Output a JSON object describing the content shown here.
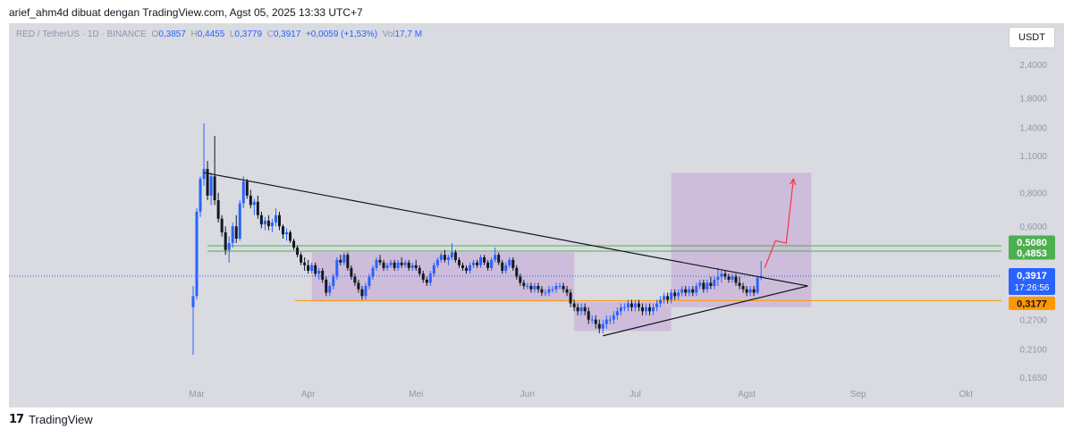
{
  "header": {
    "attribution": "arief_ahm4d dibuat dengan TradingView.com, Agst 05, 2025 13:33 UTC+7"
  },
  "legend": {
    "symbol": "RED / TetherUS · 1D · BINANCE",
    "open_label": "O",
    "open": "0,3857",
    "high_label": "H",
    "high": "0,4455",
    "low_label": "L",
    "low": "0,3779",
    "close_label": "C",
    "close": "0,3917",
    "change": "+0,0059 (+1,53%)",
    "vol_label": "Vol",
    "vol": "17,7 M"
  },
  "currency_button": "USDT",
  "footer": {
    "logo": "17",
    "brand": "TradingView"
  },
  "colors": {
    "up": "#2962ff",
    "down": "#131722",
    "box": "#c7a8d6",
    "green_line": "#4caf50",
    "orange_line": "#ff9800",
    "arrow": "#f23645"
  },
  "chart_data": {
    "type": "candlestick",
    "y_scale": "log",
    "y_ticks": [
      "2,4000",
      "1,8000",
      "1,4000",
      "1,1000",
      "0,8000",
      "0,6000",
      "0,2700",
      "0,2100",
      "0,1650"
    ],
    "x_ticks": [
      "Mar",
      "Apr",
      "Mei",
      "Jun",
      "Jul",
      "Agst",
      "Sep",
      "Okt"
    ],
    "price_labels": [
      {
        "text": "0,5080",
        "value": 0.508,
        "color": "#4caf50"
      },
      {
        "text": "0,4853",
        "value": 0.4853,
        "color": "#4caf50"
      },
      {
        "text": "0,3917",
        "value": 0.3917,
        "color": "#2962ff"
      },
      {
        "text": "17:26:56",
        "value": 0.3917,
        "color": "#2962ff"
      },
      {
        "text": "0,3177",
        "value": 0.3177,
        "color": "#ff9800"
      }
    ],
    "last_price": 0.3917,
    "countdown": "17:26:56",
    "levels": [
      {
        "name": "resistance-upper",
        "value": 0.508,
        "color": "#4caf50"
      },
      {
        "name": "resistance-lower",
        "value": 0.4853,
        "color": "#4caf50"
      },
      {
        "name": "support",
        "value": 0.3177,
        "color": "#ff9800"
      }
    ],
    "annotations": [
      {
        "type": "trendline",
        "from": [
          "2025-03-03",
          0.95
        ],
        "to": [
          "2025-08-18",
          0.36
        ]
      },
      {
        "type": "trendline",
        "from": [
          "2025-06-22",
          0.235
        ],
        "to": [
          "2025-08-18",
          0.36
        ]
      },
      {
        "type": "box",
        "x0": "2025-04-02",
        "x1": "2025-06-14",
        "y0": 0.315,
        "y1": 0.48
      },
      {
        "type": "box",
        "x0": "2025-06-14",
        "x1": "2025-07-11",
        "y0": 0.245,
        "y1": 0.315
      },
      {
        "type": "box",
        "x0": "2025-07-11",
        "x1": "2025-08-19",
        "y0": 0.3,
        "y1": 0.95
      },
      {
        "type": "projection-arrow",
        "points": [
          [
            "2025-08-06",
            0.42
          ],
          [
            "2025-08-09",
            0.53
          ],
          [
            "2025-08-12",
            0.52
          ],
          [
            "2025-08-14",
            0.9
          ]
        ]
      }
    ],
    "ohlc": [
      [
        "2025-02-28",
        0.3,
        0.36,
        0.2,
        0.33
      ],
      [
        "2025-03-01",
        0.33,
        0.7,
        0.32,
        0.68
      ],
      [
        "2025-03-02",
        0.68,
        0.92,
        0.65,
        0.9
      ],
      [
        "2025-03-03",
        0.9,
        1.45,
        0.85,
        0.98
      ],
      [
        "2025-03-04",
        0.98,
        1.05,
        0.75,
        0.78
      ],
      [
        "2025-03-05",
        0.78,
        0.95,
        0.72,
        0.92
      ],
      [
        "2025-03-06",
        0.92,
        1.3,
        0.72,
        0.75
      ],
      [
        "2025-03-07",
        0.75,
        0.8,
        0.62,
        0.64
      ],
      [
        "2025-03-08",
        0.64,
        0.66,
        0.55,
        0.57
      ],
      [
        "2025-03-09",
        0.57,
        0.6,
        0.47,
        0.49
      ],
      [
        "2025-03-10",
        0.49,
        0.55,
        0.44,
        0.52
      ],
      [
        "2025-03-11",
        0.52,
        0.62,
        0.5,
        0.6
      ],
      [
        "2025-03-12",
        0.6,
        0.66,
        0.52,
        0.54
      ],
      [
        "2025-03-13",
        0.54,
        0.75,
        0.53,
        0.73
      ],
      [
        "2025-03-14",
        0.73,
        0.92,
        0.7,
        0.88
      ],
      [
        "2025-03-15",
        0.88,
        0.9,
        0.76,
        0.78
      ],
      [
        "2025-03-16",
        0.78,
        0.82,
        0.7,
        0.72
      ],
      [
        "2025-03-17",
        0.72,
        0.76,
        0.66,
        0.74
      ],
      [
        "2025-03-18",
        0.74,
        0.78,
        0.64,
        0.66
      ],
      [
        "2025-03-19",
        0.66,
        0.68,
        0.59,
        0.61
      ],
      [
        "2025-03-20",
        0.61,
        0.65,
        0.58,
        0.63
      ],
      [
        "2025-03-21",
        0.63,
        0.66,
        0.58,
        0.6
      ],
      [
        "2025-03-22",
        0.6,
        0.64,
        0.57,
        0.62
      ],
      [
        "2025-03-23",
        0.62,
        0.7,
        0.6,
        0.66
      ],
      [
        "2025-03-24",
        0.66,
        0.68,
        0.58,
        0.6
      ],
      [
        "2025-03-25",
        0.6,
        0.61,
        0.54,
        0.56
      ],
      [
        "2025-03-26",
        0.56,
        0.59,
        0.53,
        0.57
      ],
      [
        "2025-03-27",
        0.57,
        0.58,
        0.52,
        0.53
      ],
      [
        "2025-03-28",
        0.53,
        0.54,
        0.49,
        0.5
      ],
      [
        "2025-03-29",
        0.5,
        0.51,
        0.46,
        0.47
      ],
      [
        "2025-03-30",
        0.47,
        0.48,
        0.43,
        0.44
      ],
      [
        "2025-03-31",
        0.44,
        0.46,
        0.41,
        0.43
      ],
      [
        "2025-04-01",
        0.43,
        0.45,
        0.4,
        0.41
      ],
      [
        "2025-04-02",
        0.41,
        0.44,
        0.4,
        0.43
      ],
      [
        "2025-04-03",
        0.43,
        0.44,
        0.39,
        0.4
      ],
      [
        "2025-04-04",
        0.4,
        0.42,
        0.38,
        0.41
      ],
      [
        "2025-04-05",
        0.41,
        0.42,
        0.37,
        0.38
      ],
      [
        "2025-04-06",
        0.38,
        0.39,
        0.33,
        0.34
      ],
      [
        "2025-04-07",
        0.34,
        0.37,
        0.33,
        0.36
      ],
      [
        "2025-04-08",
        0.36,
        0.4,
        0.35,
        0.39
      ],
      [
        "2025-04-09",
        0.39,
        0.46,
        0.38,
        0.45
      ],
      [
        "2025-04-10",
        0.45,
        0.47,
        0.43,
        0.44
      ],
      [
        "2025-04-11",
        0.44,
        0.48,
        0.43,
        0.47
      ],
      [
        "2025-04-12",
        0.47,
        0.48,
        0.41,
        0.42
      ],
      [
        "2025-04-13",
        0.42,
        0.43,
        0.38,
        0.39
      ],
      [
        "2025-04-14",
        0.39,
        0.4,
        0.36,
        0.37
      ],
      [
        "2025-04-15",
        0.37,
        0.38,
        0.34,
        0.35
      ],
      [
        "2025-04-16",
        0.35,
        0.36,
        0.32,
        0.33
      ],
      [
        "2025-04-17",
        0.33,
        0.37,
        0.32,
        0.36
      ],
      [
        "2025-04-18",
        0.36,
        0.4,
        0.35,
        0.39
      ],
      [
        "2025-04-19",
        0.39,
        0.43,
        0.38,
        0.42
      ],
      [
        "2025-04-20",
        0.42,
        0.46,
        0.41,
        0.45
      ],
      [
        "2025-04-21",
        0.45,
        0.47,
        0.43,
        0.44
      ],
      [
        "2025-04-22",
        0.44,
        0.45,
        0.41,
        0.42
      ],
      [
        "2025-04-23",
        0.42,
        0.44,
        0.41,
        0.43
      ],
      [
        "2025-04-24",
        0.43,
        0.45,
        0.42,
        0.44
      ],
      [
        "2025-04-25",
        0.44,
        0.45,
        0.41,
        0.42
      ],
      [
        "2025-04-26",
        0.42,
        0.45,
        0.41,
        0.44
      ],
      [
        "2025-04-27",
        0.44,
        0.46,
        0.42,
        0.43
      ],
      [
        "2025-04-28",
        0.43,
        0.45,
        0.42,
        0.44
      ],
      [
        "2025-04-29",
        0.44,
        0.45,
        0.41,
        0.42
      ],
      [
        "2025-04-30",
        0.42,
        0.44,
        0.41,
        0.43
      ],
      [
        "2025-05-01",
        0.43,
        0.45,
        0.41,
        0.42
      ],
      [
        "2025-05-02",
        0.42,
        0.43,
        0.39,
        0.4
      ],
      [
        "2025-05-03",
        0.4,
        0.41,
        0.37,
        0.38
      ],
      [
        "2025-05-04",
        0.38,
        0.39,
        0.36,
        0.37
      ],
      [
        "2025-05-05",
        0.37,
        0.41,
        0.36,
        0.4
      ],
      [
        "2025-05-06",
        0.4,
        0.44,
        0.39,
        0.43
      ],
      [
        "2025-05-07",
        0.43,
        0.46,
        0.42,
        0.45
      ],
      [
        "2025-05-08",
        0.45,
        0.48,
        0.44,
        0.47
      ],
      [
        "2025-05-09",
        0.47,
        0.49,
        0.44,
        0.45
      ],
      [
        "2025-05-10",
        0.45,
        0.47,
        0.43,
        0.46
      ],
      [
        "2025-05-11",
        0.46,
        0.52,
        0.45,
        0.48
      ],
      [
        "2025-05-12",
        0.48,
        0.49,
        0.44,
        0.45
      ],
      [
        "2025-05-13",
        0.45,
        0.46,
        0.42,
        0.43
      ],
      [
        "2025-05-14",
        0.43,
        0.44,
        0.41,
        0.42
      ],
      [
        "2025-05-15",
        0.42,
        0.43,
        0.4,
        0.41
      ],
      [
        "2025-05-16",
        0.41,
        0.44,
        0.4,
        0.43
      ],
      [
        "2025-05-17",
        0.43,
        0.45,
        0.42,
        0.44
      ],
      [
        "2025-05-18",
        0.44,
        0.45,
        0.42,
        0.43
      ],
      [
        "2025-05-19",
        0.43,
        0.47,
        0.42,
        0.46
      ],
      [
        "2025-05-20",
        0.46,
        0.47,
        0.43,
        0.44
      ],
      [
        "2025-05-21",
        0.44,
        0.45,
        0.41,
        0.42
      ],
      [
        "2025-05-22",
        0.42,
        0.46,
        0.41,
        0.45
      ],
      [
        "2025-05-23",
        0.45,
        0.5,
        0.44,
        0.47
      ],
      [
        "2025-05-24",
        0.47,
        0.48,
        0.43,
        0.44
      ],
      [
        "2025-05-25",
        0.44,
        0.45,
        0.4,
        0.41
      ],
      [
        "2025-05-26",
        0.41,
        0.44,
        0.4,
        0.43
      ],
      [
        "2025-05-27",
        0.43,
        0.46,
        0.42,
        0.45
      ],
      [
        "2025-05-28",
        0.45,
        0.46,
        0.41,
        0.42
      ],
      [
        "2025-05-29",
        0.42,
        0.43,
        0.38,
        0.39
      ],
      [
        "2025-05-30",
        0.39,
        0.4,
        0.36,
        0.37
      ],
      [
        "2025-05-31",
        0.37,
        0.38,
        0.35,
        0.36
      ],
      [
        "2025-06-01",
        0.36,
        0.37,
        0.35,
        0.36
      ],
      [
        "2025-06-02",
        0.36,
        0.37,
        0.34,
        0.35
      ],
      [
        "2025-06-03",
        0.35,
        0.37,
        0.34,
        0.36
      ],
      [
        "2025-06-04",
        0.36,
        0.37,
        0.34,
        0.35
      ],
      [
        "2025-06-05",
        0.35,
        0.36,
        0.33,
        0.34
      ],
      [
        "2025-06-06",
        0.34,
        0.35,
        0.33,
        0.34
      ],
      [
        "2025-06-07",
        0.34,
        0.36,
        0.33,
        0.35
      ],
      [
        "2025-06-08",
        0.35,
        0.36,
        0.34,
        0.35
      ],
      [
        "2025-06-09",
        0.35,
        0.37,
        0.34,
        0.36
      ],
      [
        "2025-06-10",
        0.36,
        0.37,
        0.35,
        0.36
      ],
      [
        "2025-06-11",
        0.36,
        0.37,
        0.34,
        0.35
      ],
      [
        "2025-06-12",
        0.35,
        0.36,
        0.33,
        0.34
      ],
      [
        "2025-06-13",
        0.34,
        0.35,
        0.3,
        0.31
      ],
      [
        "2025-06-14",
        0.31,
        0.32,
        0.29,
        0.3
      ],
      [
        "2025-06-15",
        0.3,
        0.31,
        0.28,
        0.29
      ],
      [
        "2025-06-16",
        0.29,
        0.31,
        0.28,
        0.3
      ],
      [
        "2025-06-17",
        0.3,
        0.31,
        0.28,
        0.29
      ],
      [
        "2025-06-18",
        0.29,
        0.3,
        0.26,
        0.27
      ],
      [
        "2025-06-19",
        0.27,
        0.28,
        0.26,
        0.27
      ],
      [
        "2025-06-20",
        0.27,
        0.28,
        0.25,
        0.26
      ],
      [
        "2025-06-21",
        0.26,
        0.27,
        0.24,
        0.25
      ],
      [
        "2025-06-22",
        0.25,
        0.27,
        0.24,
        0.26
      ],
      [
        "2025-06-23",
        0.26,
        0.28,
        0.25,
        0.27
      ],
      [
        "2025-06-24",
        0.27,
        0.28,
        0.26,
        0.27
      ],
      [
        "2025-06-25",
        0.27,
        0.29,
        0.26,
        0.28
      ],
      [
        "2025-06-26",
        0.28,
        0.3,
        0.27,
        0.29
      ],
      [
        "2025-06-27",
        0.29,
        0.31,
        0.28,
        0.3
      ],
      [
        "2025-06-28",
        0.3,
        0.31,
        0.29,
        0.3
      ],
      [
        "2025-06-29",
        0.3,
        0.32,
        0.29,
        0.31
      ],
      [
        "2025-06-30",
        0.31,
        0.32,
        0.29,
        0.3
      ],
      [
        "2025-07-01",
        0.3,
        0.32,
        0.29,
        0.31
      ],
      [
        "2025-07-02",
        0.31,
        0.32,
        0.29,
        0.3
      ],
      [
        "2025-07-03",
        0.3,
        0.31,
        0.28,
        0.29
      ],
      [
        "2025-07-04",
        0.29,
        0.31,
        0.28,
        0.3
      ],
      [
        "2025-07-05",
        0.3,
        0.31,
        0.28,
        0.29
      ],
      [
        "2025-07-06",
        0.29,
        0.31,
        0.28,
        0.3
      ],
      [
        "2025-07-07",
        0.3,
        0.32,
        0.29,
        0.31
      ],
      [
        "2025-07-08",
        0.31,
        0.33,
        0.3,
        0.32
      ],
      [
        "2025-07-09",
        0.32,
        0.34,
        0.31,
        0.33
      ],
      [
        "2025-07-10",
        0.33,
        0.34,
        0.31,
        0.32
      ],
      [
        "2025-07-11",
        0.32,
        0.35,
        0.31,
        0.34
      ],
      [
        "2025-07-12",
        0.34,
        0.35,
        0.32,
        0.33
      ],
      [
        "2025-07-13",
        0.33,
        0.35,
        0.32,
        0.34
      ],
      [
        "2025-07-14",
        0.34,
        0.36,
        0.33,
        0.35
      ],
      [
        "2025-07-15",
        0.35,
        0.36,
        0.33,
        0.34
      ],
      [
        "2025-07-16",
        0.34,
        0.36,
        0.33,
        0.35
      ],
      [
        "2025-07-17",
        0.35,
        0.36,
        0.33,
        0.34
      ],
      [
        "2025-07-18",
        0.34,
        0.37,
        0.33,
        0.36
      ],
      [
        "2025-07-19",
        0.36,
        0.38,
        0.35,
        0.37
      ],
      [
        "2025-07-20",
        0.37,
        0.38,
        0.34,
        0.35
      ],
      [
        "2025-07-21",
        0.35,
        0.38,
        0.34,
        0.37
      ],
      [
        "2025-07-22",
        0.37,
        0.39,
        0.35,
        0.36
      ],
      [
        "2025-07-23",
        0.36,
        0.39,
        0.35,
        0.38
      ],
      [
        "2025-07-24",
        0.38,
        0.42,
        0.36,
        0.39
      ],
      [
        "2025-07-25",
        0.39,
        0.41,
        0.37,
        0.4
      ],
      [
        "2025-07-26",
        0.4,
        0.41,
        0.38,
        0.39
      ],
      [
        "2025-07-27",
        0.39,
        0.4,
        0.37,
        0.38
      ],
      [
        "2025-07-28",
        0.38,
        0.4,
        0.37,
        0.39
      ],
      [
        "2025-07-29",
        0.39,
        0.4,
        0.36,
        0.37
      ],
      [
        "2025-07-30",
        0.37,
        0.39,
        0.35,
        0.36
      ],
      [
        "2025-07-31",
        0.36,
        0.37,
        0.34,
        0.35
      ],
      [
        "2025-08-01",
        0.35,
        0.36,
        0.33,
        0.34
      ],
      [
        "2025-08-02",
        0.34,
        0.36,
        0.33,
        0.35
      ],
      [
        "2025-08-03",
        0.35,
        0.36,
        0.33,
        0.34
      ],
      [
        "2025-08-04",
        0.34,
        0.39,
        0.335,
        0.3857
      ],
      [
        "2025-08-05",
        0.3857,
        0.4455,
        0.3779,
        0.3917
      ]
    ]
  }
}
